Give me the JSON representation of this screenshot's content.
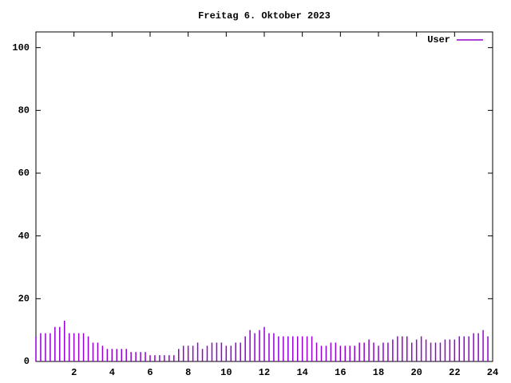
{
  "chart_data": {
    "type": "impulse",
    "title": "Freitag 6. Oktober 2023",
    "x": [
      0,
      0.25,
      0.5,
      0.75,
      1,
      1.25,
      1.5,
      1.75,
      2,
      2.25,
      2.5,
      2.75,
      3,
      3.25,
      3.5,
      3.75,
      4,
      4.25,
      4.5,
      4.75,
      5,
      5.25,
      5.5,
      5.75,
      6,
      6.25,
      6.5,
      6.75,
      7,
      7.25,
      7.5,
      7.75,
      8,
      8.25,
      8.5,
      8.75,
      9,
      9.25,
      9.5,
      9.75,
      10,
      10.25,
      10.5,
      10.75,
      11,
      11.25,
      11.5,
      11.75,
      12,
      12.25,
      12.5,
      12.75,
      13,
      13.25,
      13.5,
      13.75,
      14,
      14.25,
      14.5,
      14.75,
      15,
      15.25,
      15.5,
      15.75,
      16,
      16.25,
      16.5,
      16.75,
      17,
      17.25,
      17.5,
      17.75,
      18,
      18.25,
      18.5,
      18.75,
      19,
      19.25,
      19.5,
      19.75,
      20,
      20.25,
      20.5,
      20.75,
      21,
      21.25,
      21.5,
      21.75,
      22,
      22.25,
      22.5,
      22.75,
      23,
      23.25,
      23.5,
      23.75
    ],
    "series": [
      {
        "name": "User",
        "color": "#9400d3",
        "values": [
          8,
          9,
          9,
          9,
          11,
          11,
          13,
          9,
          9,
          9,
          9,
          8,
          6,
          6,
          5,
          4,
          4,
          4,
          4,
          4,
          3,
          3,
          3,
          3,
          2,
          2,
          2,
          2,
          2,
          2,
          4,
          5,
          5,
          5,
          6,
          4,
          5,
          6,
          6,
          6,
          5,
          5,
          6,
          6,
          8,
          10,
          9,
          10,
          11,
          9,
          9,
          8,
          8,
          8,
          8,
          8,
          8,
          8,
          8,
          6,
          5,
          5,
          6,
          6,
          5,
          5,
          5,
          5,
          6,
          6,
          7,
          6,
          5,
          6,
          6,
          7,
          8,
          8,
          8,
          6,
          7,
          8,
          7,
          6,
          6,
          6,
          7,
          7,
          7,
          8,
          8,
          8,
          9,
          9,
          10,
          8
        ]
      }
    ],
    "xlim": [
      0,
      24
    ],
    "ylim": [
      0,
      105
    ],
    "xticks": [
      2,
      4,
      6,
      8,
      10,
      12,
      14,
      16,
      18,
      20,
      22,
      24
    ],
    "yticks": [
      0,
      20,
      40,
      60,
      80,
      100
    ],
    "legend": "top-right"
  }
}
